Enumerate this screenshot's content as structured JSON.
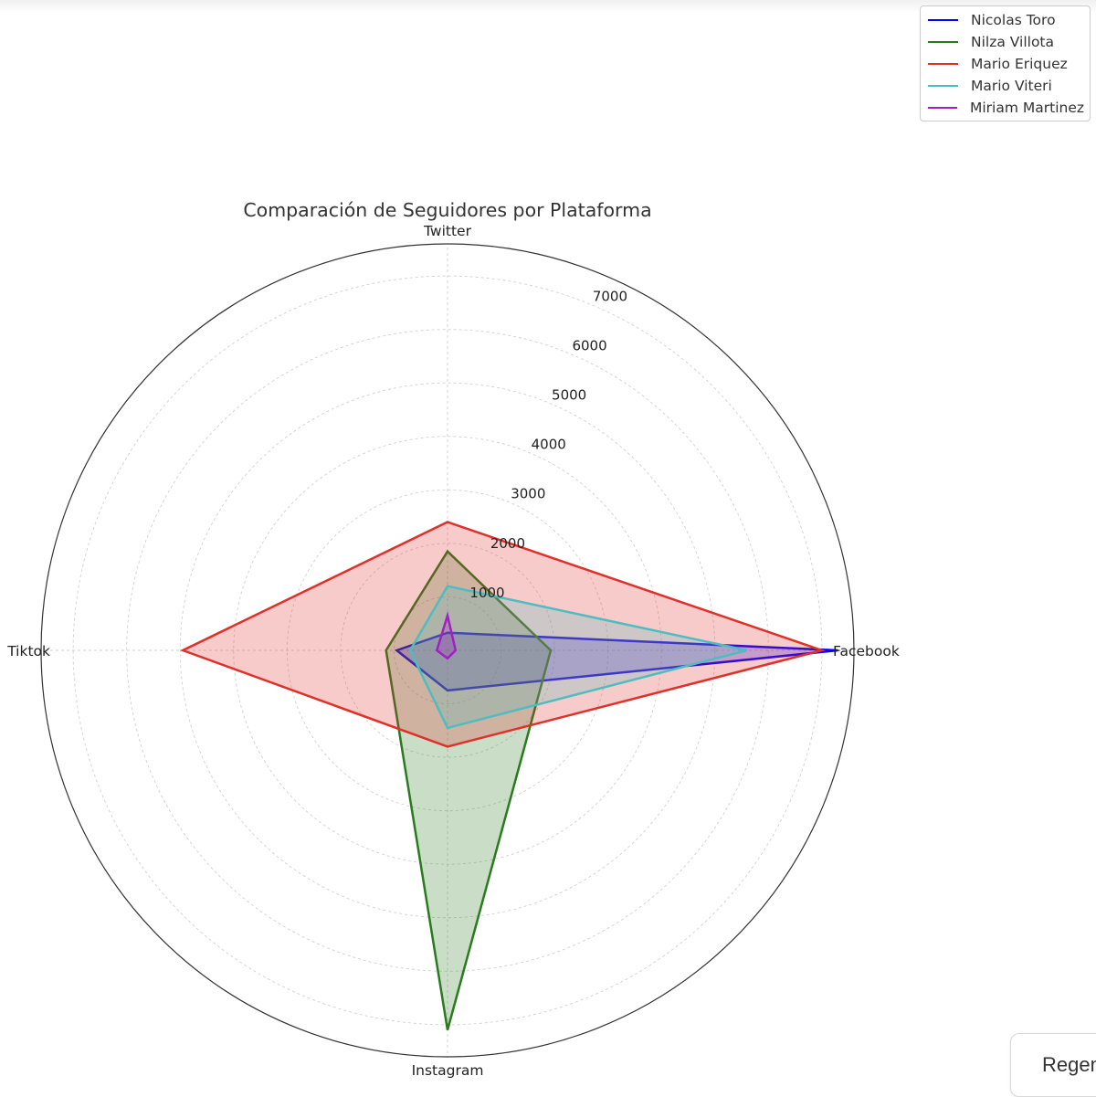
{
  "chart_data": {
    "type": "radar",
    "title": "Comparación de Seguidores por Plataforma",
    "axes": [
      "Twitter",
      "Facebook",
      "Instagram",
      "Tiktok"
    ],
    "rlim": [
      0,
      7600
    ],
    "rticks": [
      1000,
      2000,
      3000,
      4000,
      5000,
      6000,
      7000
    ],
    "grid": true,
    "legend_position": "top-right",
    "series": [
      {
        "name": "Nicolas Toro",
        "color": "#0000ff",
        "values": [
          330,
          7300,
          750,
          950
        ]
      },
      {
        "name": "Nilza Villota",
        "color": "#2a7a1e",
        "values": [
          1850,
          1930,
          7100,
          1150
        ]
      },
      {
        "name": "Mario Eriquez",
        "color": "#e0302a",
        "values": [
          2400,
          7000,
          1800,
          4950
        ]
      },
      {
        "name": "Mario Viteri",
        "color": "#4fbcc0",
        "values": [
          1200,
          5600,
          1450,
          700
        ]
      },
      {
        "name": "Miriam Martinez",
        "color": "#a020c0",
        "values": [
          650,
          150,
          150,
          200
        ]
      }
    ]
  },
  "ui": {
    "regenerate_label": "Regenerate"
  }
}
